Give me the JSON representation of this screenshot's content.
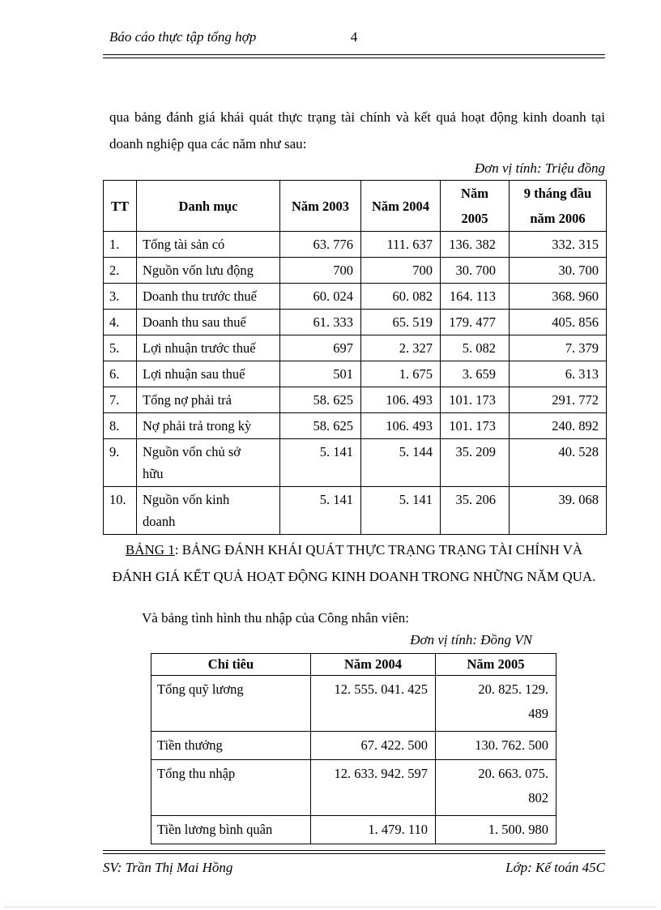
{
  "header": {
    "title": "Báo cáo thực tập tổng hợp",
    "page_number": "4"
  },
  "intro_paragraph": "qua bảng đánh giá khái quát thực trạng tài chính và kết quả hoạt động kinh doanh tại doanh nghiệp qua các năm như sau:",
  "table1_unit": "Đơn vị tính: Triệu đồng",
  "table1": {
    "headers": [
      "TT",
      "Danh mục",
      "Năm 2003",
      "Năm 2004",
      "Năm\n2005",
      "9 tháng đầu\nnăm 2006"
    ],
    "rows": [
      [
        "1.",
        "Tổng tài sản có",
        "63. 776",
        "111. 637",
        "136. 382",
        "332. 315"
      ],
      [
        "2.",
        "Nguồn vốn lưu động",
        "700",
        "700",
        "30. 700",
        "30. 700"
      ],
      [
        "3.",
        "Doanh thu trước thuế",
        "60. 024",
        "60. 082",
        "164. 113",
        "368. 960"
      ],
      [
        "4.",
        "Doanh thu sau thuế",
        "61. 333",
        "65. 519",
        "179. 477",
        "405. 856"
      ],
      [
        "5.",
        "Lợi nhuận trước thuế",
        "697",
        "2. 327",
        "5. 082",
        "7. 379"
      ],
      [
        "6.",
        "Lợi nhuận sau thuế",
        "501",
        "1. 675",
        "3. 659",
        "6. 313"
      ],
      [
        "7.",
        "Tổng nợ phải trả",
        "58. 625",
        "106. 493",
        "101. 173",
        "291. 772"
      ],
      [
        "8.",
        "Nợ phải trả trong kỳ",
        "58. 625",
        "106. 493",
        "101. 173",
        "240. 892"
      ],
      [
        "9.",
        "Nguồn vốn chủ sở\nhữu",
        "5. 141",
        "5. 144",
        "35. 209",
        "40. 528"
      ],
      [
        "10.",
        "Nguồn vốn kinh\ndoanh",
        "5. 141",
        "5. 141",
        "35. 206",
        "39. 068"
      ]
    ]
  },
  "table1_caption_label": "BẢNG 1",
  "table1_caption_text": ": BẢNG ĐÁNH KHÁI QUÁT THỰC TRẠNG TRẠNG TÀI CHÍNH VÀ\nĐÁNH GIÁ KẾT QUẢ HOẠT ĐỘNG KINH DOANH TRONG NHỮNG NĂM QUA.",
  "second_intro": "Và bảng tình hình thu nhập của Công nhân viên:",
  "table2_unit": "Đơn vị tính: Đồng VN",
  "table2": {
    "headers": [
      "Chỉ tiêu",
      "Năm 2004",
      "Năm 2005"
    ],
    "rows": [
      [
        "Tổng quỹ lương",
        "12. 555. 041. 425",
        "20. 825. 129.\n489"
      ],
      [
        "Tiền thưởng",
        "67. 422. 500",
        "130. 762. 500"
      ],
      [
        "Tổng thu nhập",
        "12. 633. 942. 597",
        "20. 663. 075.\n802"
      ],
      [
        "Tiền lương bình quân",
        "1. 479. 110",
        "1. 500. 980"
      ]
    ]
  },
  "footer": {
    "left": "SV: Trần Thị Mai Hồng",
    "right": "Lớp: Kế toán 45C"
  },
  "colors": {
    "text": "#000000",
    "page_background": "#ffffff",
    "page_boundary_dots": "#f0b3de"
  }
}
